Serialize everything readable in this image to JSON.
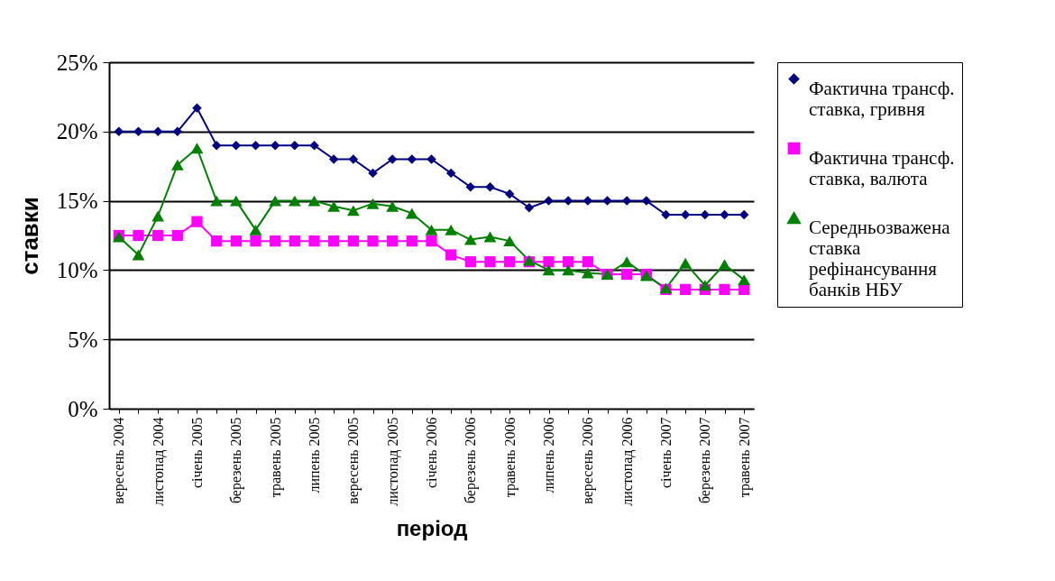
{
  "chart_data": {
    "type": "line",
    "xlabel": "період",
    "ylabel": "ставки",
    "categories": [
      "вересень 2004",
      null,
      "листопад 2004",
      null,
      "січень 2005",
      null,
      "березень 2005",
      null,
      "травень 2005",
      null,
      "липень 2005",
      null,
      "вересень 2005",
      null,
      "листопад 2005",
      null,
      "січень 2006",
      null,
      "березень 2006",
      null,
      "травень 2006",
      null,
      "липень 2006",
      null,
      "вересень 2006",
      null,
      "листопад 2006",
      null,
      "січень 2007",
      null,
      "березень 2007",
      null,
      "травень 2007"
    ],
    "series": [
      {
        "name": "Фактична трансф. ставка, гривня",
        "color": "#000080",
        "marker": "diamond",
        "values": [
          20,
          20,
          20,
          20,
          21.7,
          19,
          19,
          19,
          19,
          19,
          19,
          18,
          18,
          17,
          18,
          18,
          18,
          17,
          16,
          16,
          15.5,
          14.5,
          15,
          15,
          15,
          15,
          15,
          15,
          14,
          14,
          14,
          14,
          14
        ]
      },
      {
        "name": "Фактична трансф. ставка, валюта",
        "color": "#ff00ff",
        "marker": "square",
        "values": [
          12.5,
          12.5,
          12.5,
          12.5,
          13.5,
          12.1,
          12.1,
          12.1,
          12.1,
          12.1,
          12.1,
          12.1,
          12.1,
          12.1,
          12.1,
          12.1,
          12.1,
          11.1,
          10.6,
          10.6,
          10.6,
          10.6,
          10.6,
          10.6,
          10.6,
          9.7,
          9.7,
          9.7,
          8.6,
          8.6,
          8.6,
          8.6,
          8.6
        ]
      },
      {
        "name": "Середньозважена ставка рефінансування банків НБУ",
        "color": "#008000",
        "marker": "triangle",
        "values": [
          12.4,
          11.1,
          13.9,
          17.6,
          18.8,
          15,
          15,
          12.9,
          15,
          15,
          15,
          14.6,
          14.3,
          14.8,
          14.6,
          14.1,
          12.9,
          12.9,
          12.2,
          12.4,
          12.1,
          10.7,
          10,
          10,
          9.8,
          9.7,
          10.6,
          9.6,
          8.7,
          10.5,
          8.9,
          10.4,
          9.3
        ]
      }
    ],
    "ylim": [
      0,
      25
    ],
    "yticks": [
      {
        "value": 0,
        "label": "0%"
      },
      {
        "value": 5,
        "label": "5%"
      },
      {
        "value": 10,
        "label": "10%"
      },
      {
        "value": 15,
        "label": "15%"
      },
      {
        "value": 20,
        "label": "20%"
      },
      {
        "value": 25,
        "label": "25%"
      }
    ],
    "grid": "y",
    "legend": "right",
    "line_style": "solid"
  }
}
